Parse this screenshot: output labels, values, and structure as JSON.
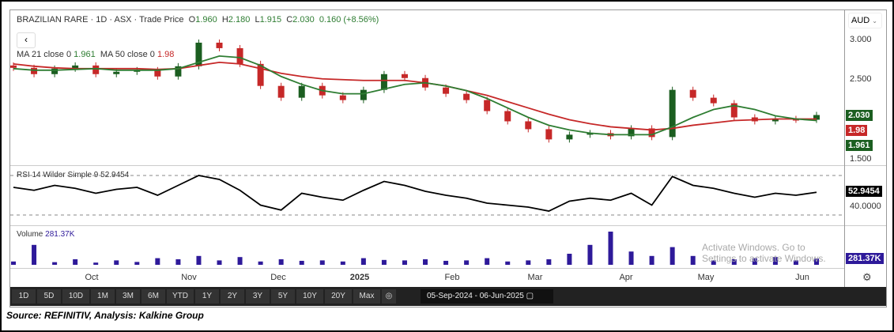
{
  "header": {
    "symbol": "BRAZILIAN RARE",
    "interval": "1D",
    "exchange": "ASX",
    "price_type": "Trade Price",
    "open": "1.960",
    "high": "2.180",
    "low": "1.915",
    "close": "2.030",
    "change": "0.160 (+8.56%)"
  },
  "indicators": {
    "ma21_label": "MA 21 close 0",
    "ma21_value": "1.961",
    "ma50_label": "MA 50 close 0",
    "ma50_value": "1.98",
    "rsi_label": "RSI 14 Wilder Simple 9",
    "rsi_value": "52.9454",
    "volume_label": "Volume",
    "volume_value": "281.37K"
  },
  "axis": {
    "currency": "AUD",
    "price_ticks": [
      "3.000",
      "2.500",
      "1.500"
    ],
    "price_tag": "2.030",
    "ma50_tag": "1.98",
    "ma21_tag": "1.961",
    "rsi_tick": "40.0000",
    "rsi_tag": "52.9454",
    "volume_tag": "281.37K",
    "months": [
      "Oct",
      "Nov",
      "Dec",
      "2025",
      "Feb",
      "Mar",
      "Apr",
      "May",
      "Jun"
    ]
  },
  "toolbar": {
    "ranges": [
      "1D",
      "5D",
      "10D",
      "1M",
      "3M",
      "6M",
      "YTD",
      "1Y",
      "2Y",
      "3Y",
      "5Y",
      "10Y",
      "20Y",
      "Max"
    ],
    "date_range": "05-Sep-2024 - 06-Jun-2025"
  },
  "watermark": "Activate Windows. Go to Settings to activate Windows.",
  "source": "Source: REFINITIV, Analysis: Kalkine Group",
  "colors": {
    "up": "#1b5e20",
    "down": "#c62828",
    "ma21": "#2e7d32",
    "ma50": "#c62828",
    "volume": "#2e1a9a",
    "rsi": "#000000"
  },
  "chart_data": {
    "type": "candlestick",
    "ylim": [
      1.4,
      3.1
    ],
    "rsi_ylim": [
      30,
      70
    ],
    "dates": [
      "2024-09-05",
      "2024-09-12",
      "2024-09-19",
      "2024-09-26",
      "2024-10-03",
      "2024-10-10",
      "2024-10-17",
      "2024-10-24",
      "2024-10-31",
      "2024-11-07",
      "2024-11-14",
      "2024-11-21",
      "2024-11-28",
      "2024-12-05",
      "2024-12-12",
      "2024-12-19",
      "2024-12-26",
      "2025-01-02",
      "2025-01-09",
      "2025-01-16",
      "2025-01-23",
      "2025-01-30",
      "2025-02-06",
      "2025-02-13",
      "2025-02-20",
      "2025-02-27",
      "2025-03-06",
      "2025-03-13",
      "2025-03-20",
      "2025-03-27",
      "2025-04-03",
      "2025-04-10",
      "2025-04-17",
      "2025-04-24",
      "2025-05-01",
      "2025-05-08",
      "2025-05-15",
      "2025-05-22",
      "2025-05-29",
      "2025-06-05"
    ],
    "close": [
      2.63,
      2.55,
      2.62,
      2.66,
      2.55,
      2.58,
      2.6,
      2.52,
      2.65,
      2.95,
      2.88,
      2.68,
      2.4,
      2.25,
      2.4,
      2.28,
      2.22,
      2.35,
      2.55,
      2.5,
      2.38,
      2.3,
      2.22,
      2.08,
      1.95,
      1.85,
      1.72,
      1.78,
      1.8,
      1.76,
      1.86,
      1.75,
      2.35,
      2.25,
      2.18,
      2.0,
      1.95,
      1.98,
      1.97,
      2.03
    ],
    "ma21": [
      2.62,
      2.6,
      2.6,
      2.61,
      2.62,
      2.6,
      2.6,
      2.6,
      2.62,
      2.7,
      2.78,
      2.76,
      2.66,
      2.52,
      2.42,
      2.34,
      2.3,
      2.3,
      2.36,
      2.42,
      2.44,
      2.4,
      2.34,
      2.24,
      2.12,
      2.0,
      1.9,
      1.84,
      1.8,
      1.78,
      1.78,
      1.78,
      1.88,
      2.0,
      2.1,
      2.15,
      2.1,
      2.02,
      1.98,
      1.96
    ],
    "ma50": [
      2.68,
      2.65,
      2.63,
      2.62,
      2.62,
      2.62,
      2.62,
      2.61,
      2.62,
      2.66,
      2.7,
      2.68,
      2.62,
      2.56,
      2.52,
      2.49,
      2.48,
      2.47,
      2.47,
      2.47,
      2.44,
      2.4,
      2.34,
      2.28,
      2.2,
      2.12,
      2.04,
      1.97,
      1.92,
      1.88,
      1.86,
      1.84,
      1.86,
      1.9,
      1.93,
      1.96,
      1.97,
      1.98,
      1.98,
      1.98
    ],
    "rsi": [
      58,
      55,
      60,
      57,
      52,
      56,
      58,
      50,
      60,
      70,
      66,
      55,
      40,
      35,
      52,
      48,
      45,
      55,
      64,
      60,
      54,
      50,
      47,
      42,
      40,
      38,
      34,
      44,
      47,
      45,
      52,
      40,
      69,
      60,
      57,
      52,
      48,
      52,
      50,
      53
    ],
    "volume_k": [
      150,
      900,
      120,
      250,
      100,
      200,
      130,
      300,
      250,
      400,
      200,
      350,
      150,
      250,
      180,
      200,
      150,
      300,
      220,
      200,
      250,
      180,
      200,
      300,
      150,
      200,
      250,
      500,
      900,
      1500,
      600,
      400,
      800,
      400,
      200,
      250,
      300,
      350,
      200,
      281.37
    ]
  }
}
